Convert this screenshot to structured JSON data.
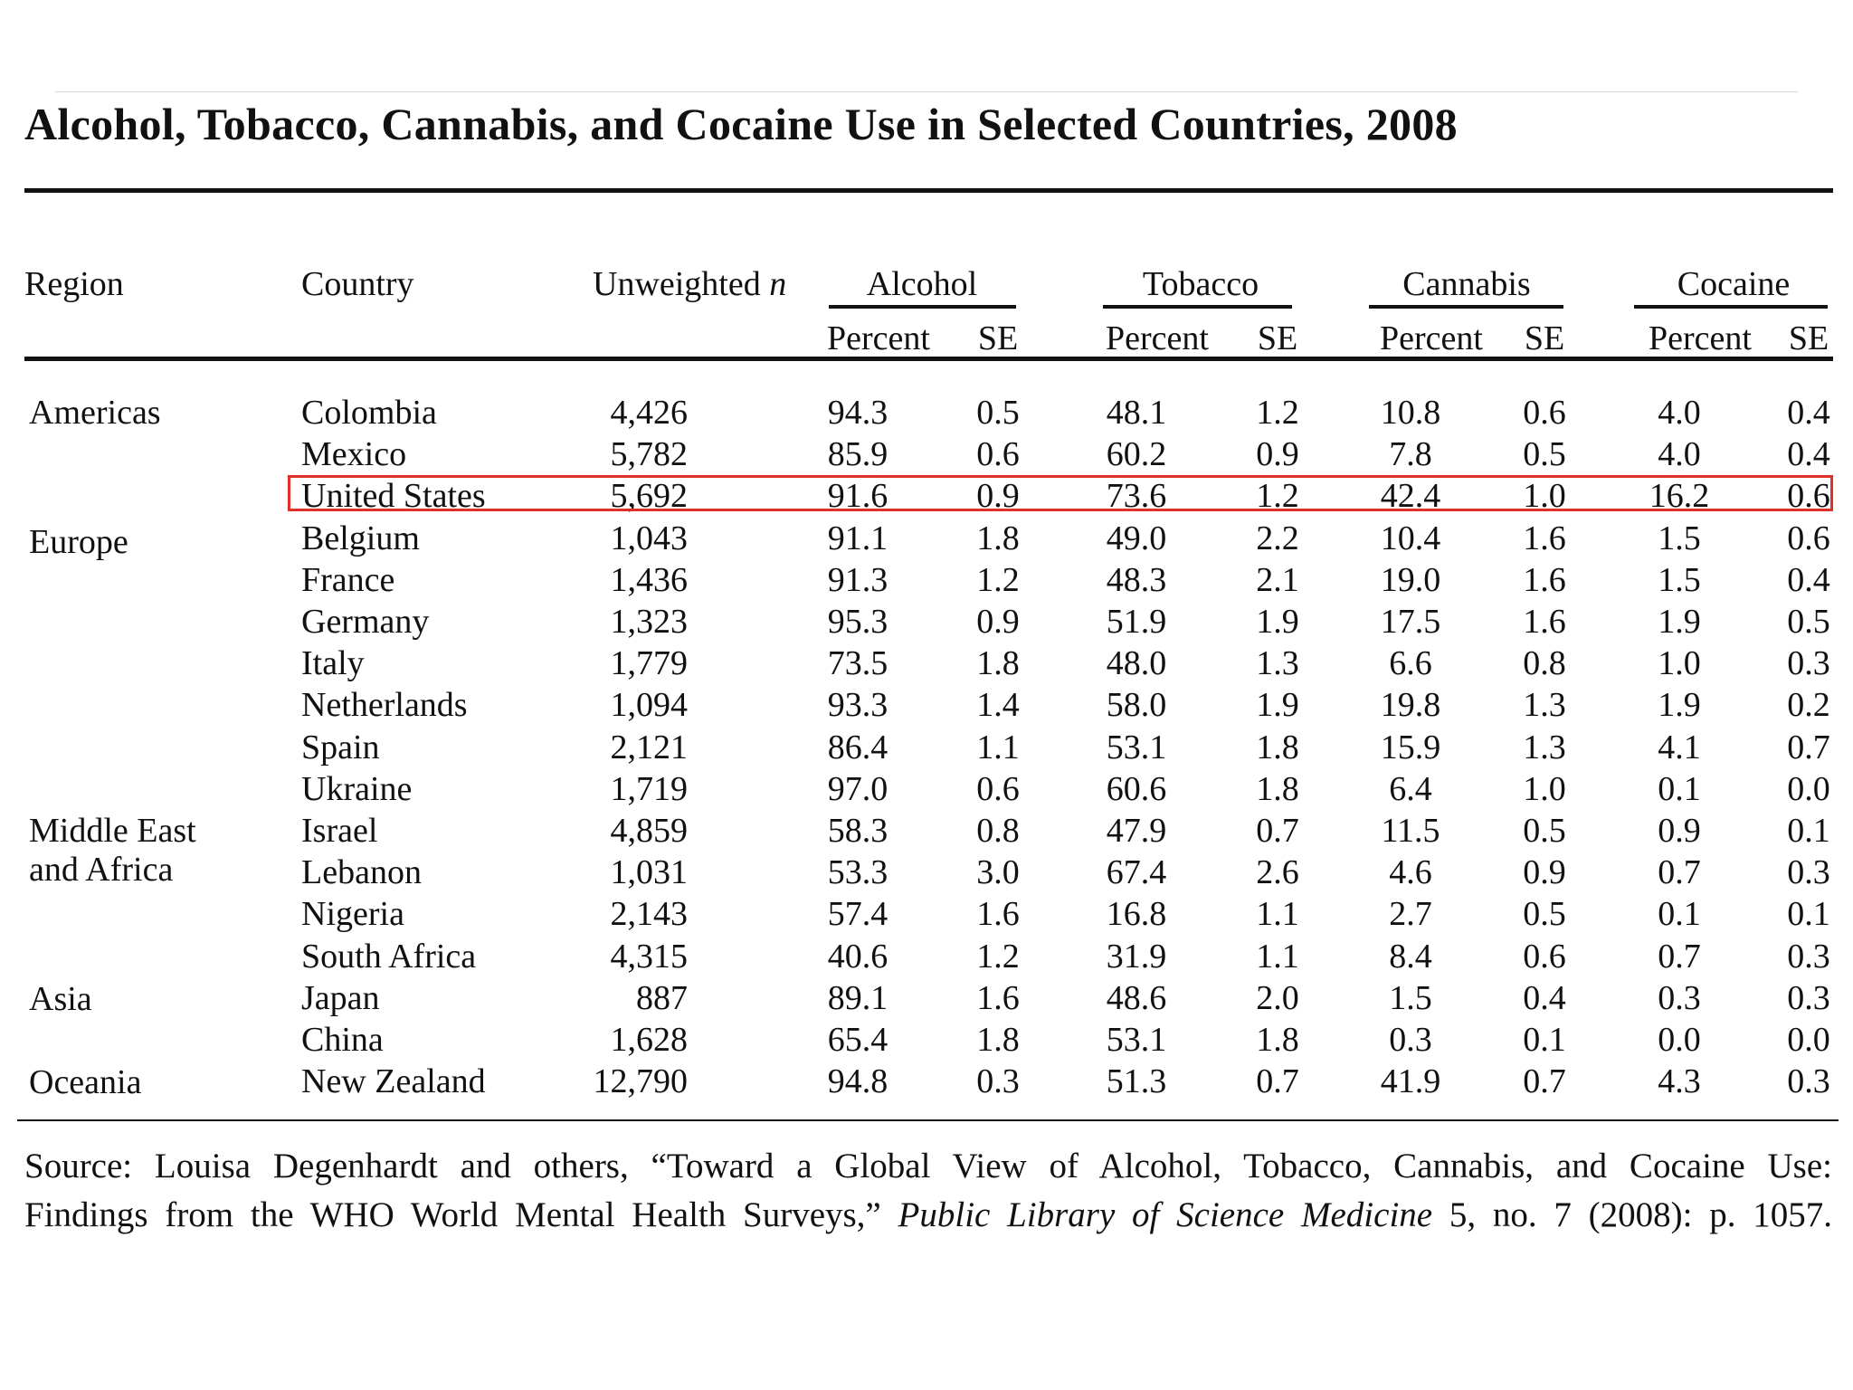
{
  "title": "Alcohol, Tobacco, Cannabis, and Cocaine Use in Selected Countries, 2008",
  "headers": {
    "region": "Region",
    "country": "Country",
    "n_label": "Unweighted",
    "n_symbol": "n",
    "groups": [
      "Alcohol",
      "Tobacco",
      "Cannabis",
      "Cocaine"
    ],
    "percent": "Percent",
    "se": "SE"
  },
  "regions": [
    "Americas",
    "Europe",
    "Middle East",
    "and Africa",
    "Asia",
    "Oceania"
  ],
  "rows": [
    {
      "country": "Colombia",
      "n": "4,426",
      "v": [
        "94.3",
        "0.5",
        "48.1",
        "1.2",
        "10.8",
        "0.6",
        "4.0",
        "0.4"
      ]
    },
    {
      "country": "Mexico",
      "n": "5,782",
      "v": [
        "85.9",
        "0.6",
        "60.2",
        "0.9",
        "7.8",
        "0.5",
        "4.0",
        "0.4"
      ]
    },
    {
      "country": "United States",
      "n": "5,692",
      "v": [
        "91.6",
        "0.9",
        "73.6",
        "1.2",
        "42.4",
        "1.0",
        "16.2",
        "0.6"
      ],
      "highlighted": true
    },
    {
      "country": "Belgium",
      "n": "1,043",
      "v": [
        "91.1",
        "1.8",
        "49.0",
        "2.2",
        "10.4",
        "1.6",
        "1.5",
        "0.6"
      ]
    },
    {
      "country": "France",
      "n": "1,436",
      "v": [
        "91.3",
        "1.2",
        "48.3",
        "2.1",
        "19.0",
        "1.6",
        "1.5",
        "0.4"
      ]
    },
    {
      "country": "Germany",
      "n": "1,323",
      "v": [
        "95.3",
        "0.9",
        "51.9",
        "1.9",
        "17.5",
        "1.6",
        "1.9",
        "0.5"
      ]
    },
    {
      "country": "Italy",
      "n": "1,779",
      "v": [
        "73.5",
        "1.8",
        "48.0",
        "1.3",
        "6.6",
        "0.8",
        "1.0",
        "0.3"
      ]
    },
    {
      "country": "Netherlands",
      "n": "1,094",
      "v": [
        "93.3",
        "1.4",
        "58.0",
        "1.9",
        "19.8",
        "1.3",
        "1.9",
        "0.2"
      ]
    },
    {
      "country": "Spain",
      "n": "2,121",
      "v": [
        "86.4",
        "1.1",
        "53.1",
        "1.8",
        "15.9",
        "1.3",
        "4.1",
        "0.7"
      ]
    },
    {
      "country": "Ukraine",
      "n": "1,719",
      "v": [
        "97.0",
        "0.6",
        "60.6",
        "1.8",
        "6.4",
        "1.0",
        "0.1",
        "0.0"
      ]
    },
    {
      "country": "Israel",
      "n": "4,859",
      "v": [
        "58.3",
        "0.8",
        "47.9",
        "0.7",
        "11.5",
        "0.5",
        "0.9",
        "0.1"
      ]
    },
    {
      "country": "Lebanon",
      "n": "1,031",
      "v": [
        "53.3",
        "3.0",
        "67.4",
        "2.6",
        "4.6",
        "0.9",
        "0.7",
        "0.3"
      ]
    },
    {
      "country": "Nigeria",
      "n": "2,143",
      "v": [
        "57.4",
        "1.6",
        "16.8",
        "1.1",
        "2.7",
        "0.5",
        "0.1",
        "0.1"
      ]
    },
    {
      "country": "South Africa",
      "n": "4,315",
      "v": [
        "40.6",
        "1.2",
        "31.9",
        "1.1",
        "8.4",
        "0.6",
        "0.7",
        "0.3"
      ]
    },
    {
      "country": "Japan",
      "n": "887",
      "v": [
        "89.1",
        "1.6",
        "48.6",
        "2.0",
        "1.5",
        "0.4",
        "0.3",
        "0.3"
      ]
    },
    {
      "country": "China",
      "n": "1,628",
      "v": [
        "65.4",
        "1.8",
        "53.1",
        "1.8",
        "0.3",
        "0.1",
        "0.0",
        "0.0"
      ]
    },
    {
      "country": "New Zealand",
      "n": "12,790",
      "v": [
        "94.8",
        "0.3",
        "51.3",
        "0.7",
        "41.9",
        "0.7",
        "4.3",
        "0.3"
      ]
    }
  ],
  "source": {
    "line1": "Source: Louisa Degenhardt and others, “Toward a Global View of Alcohol, Tobacco, Cannabis, and Cocaine Use:",
    "line2_pre": "Findings from the WHO World Mental Health Surveys,”",
    "line2_journal": "Public Library of Science Medicine",
    "line2_post": "5, no. 7 (2008): p. 1057."
  },
  "colors": {
    "highlight_border": "#e0302a",
    "text": "#111111",
    "rules": "#111111"
  }
}
